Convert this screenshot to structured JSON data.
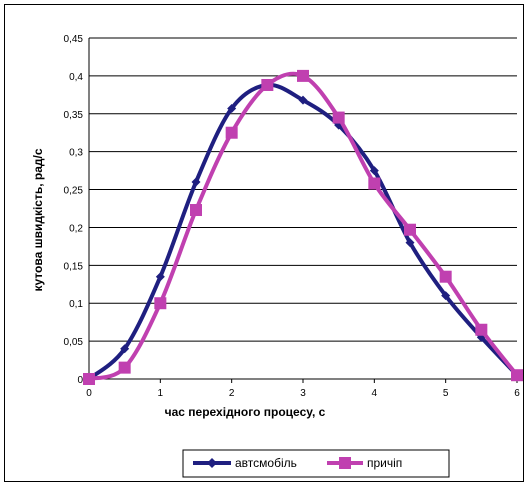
{
  "chart_data": {
    "type": "line",
    "xlabel": "час перехідного процесу, с",
    "ylabel": "кутова швидкість, рад/с",
    "xlim": [
      0,
      6
    ],
    "ylim": [
      0,
      0.45
    ],
    "x_ticks": [
      "0",
      "1",
      "2",
      "3",
      "4",
      "5",
      "6"
    ],
    "y_ticks": [
      "0",
      "0,05",
      "0,1",
      "0,15",
      "0,2",
      "0,25",
      "0,3",
      "0,35",
      "0,4",
      "0,45"
    ],
    "grid": "horizontal",
    "legend_position": "bottom",
    "series": [
      {
        "name": "автсмобіль",
        "color": "#1f1f80",
        "marker": "diamond",
        "x": [
          0,
          0.5,
          1,
          1.5,
          2,
          2.5,
          3,
          3.5,
          4,
          4.5,
          5,
          5.5,
          6
        ],
        "y": [
          0,
          0.04,
          0.135,
          0.26,
          0.357,
          0.388,
          0.368,
          0.335,
          0.275,
          0.18,
          0.11,
          0.055,
          0.005
        ]
      },
      {
        "name": "причіп",
        "color": "#c040b0",
        "marker": "square",
        "x": [
          0,
          0.5,
          1,
          1.5,
          2,
          2.5,
          3,
          3.5,
          4,
          4.5,
          5,
          5.5,
          6
        ],
        "y": [
          0,
          0.015,
          0.1,
          0.223,
          0.325,
          0.388,
          0.4,
          0.345,
          0.258,
          0.197,
          0.135,
          0.065,
          0.005
        ]
      }
    ]
  }
}
